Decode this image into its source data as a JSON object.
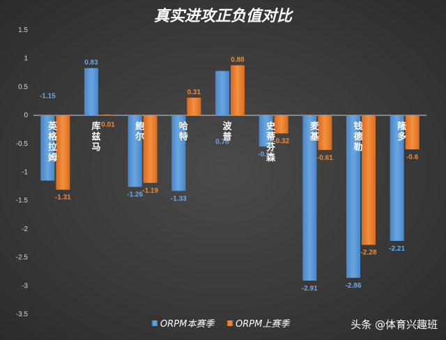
{
  "chart_data": {
    "type": "bar",
    "title": "真实进攻正负值对比",
    "categories": [
      "英格拉姆",
      "库兹马",
      "鲍尔",
      "哈特",
      "波普",
      "史蒂芬森",
      "麦基",
      "钱德勒",
      "隆多"
    ],
    "series": [
      {
        "name": "ORPM本赛季",
        "values": [
          -1.15,
          0.83,
          -1.26,
          -1.33,
          0.78,
          -0.55,
          -2.91,
          -2.86,
          -2.21
        ]
      },
      {
        "name": "ORPM上赛季",
        "values": [
          -1.31,
          0.01,
          -1.19,
          0.31,
          0.88,
          -0.32,
          -0.61,
          -2.28,
          -0.6
        ]
      }
    ],
    "data_labels": [
      [
        "-1.15",
        "0.83",
        "-1.26",
        "-1.33",
        "0.78",
        "-0.55",
        "-2.91",
        "-2.86",
        "-2.21"
      ],
      [
        "-1.31",
        "0.01",
        "-1.19",
        "0.31",
        "0.88",
        "-0.32",
        "-0.61",
        "-2.28",
        "-0.6"
      ]
    ],
    "ylim": [
      -3.5,
      1.5
    ],
    "yticks": [
      "1.5",
      "1",
      "0.5",
      "0",
      "-0.5",
      "-1",
      "-1.5",
      "-2",
      "-2.5",
      "-3",
      "-3.5"
    ],
    "xlabel": "",
    "ylabel": "",
    "grid": false,
    "legend_placement": "bottom",
    "colors": [
      "#5b9bd5",
      "#ed7d31"
    ]
  },
  "watermark": "头条 @体育兴趣班"
}
